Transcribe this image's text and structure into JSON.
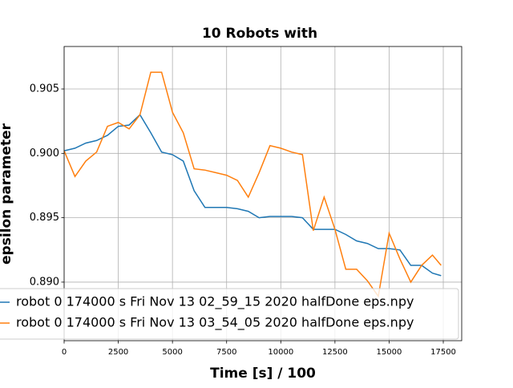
{
  "chart_data": {
    "type": "line",
    "title": "10 Robots with",
    "x_label": "Time [s] / 100",
    "y_label": "epsilon parameter",
    "x": [
      0,
      500,
      1000,
      1500,
      2000,
      2500,
      3000,
      3500,
      4000,
      4500,
      5000,
      5500,
      6000,
      6500,
      7000,
      7500,
      8000,
      8500,
      9000,
      9500,
      10000,
      10500,
      11000,
      11500,
      12000,
      12500,
      13000,
      13500,
      14000,
      14500,
      15000,
      15500,
      16000,
      16500,
      17000,
      17400
    ],
    "series": [
      {
        "name": "robot 0 174000 s Fri Nov 13 02_59_15 2020 halfDone eps.npy",
        "color": "#1f77b4",
        "values": [
          0.9002,
          0.9004,
          0.9008,
          0.901,
          0.9014,
          0.9021,
          0.9022,
          0.903,
          0.9016,
          0.9001,
          0.8999,
          0.8994,
          0.8971,
          0.8958,
          0.8958,
          0.8958,
          0.8957,
          0.8955,
          0.895,
          0.8951,
          0.8951,
          0.8951,
          0.895,
          0.8941,
          0.8941,
          0.8941,
          0.8937,
          0.8932,
          0.893,
          0.8926,
          0.8926,
          0.8925,
          0.8913,
          0.8913,
          0.8907,
          0.8905
        ]
      },
      {
        "name": "robot 0 174000 s Fri Nov 13 03_54_05 2020 halfDone eps.npy",
        "color": "#ff7f0e",
        "values": [
          0.9002,
          0.8982,
          0.8994,
          0.9001,
          0.9021,
          0.9024,
          0.9019,
          0.903,
          0.9063,
          0.9063,
          0.9032,
          0.9016,
          0.8988,
          0.8987,
          0.8985,
          0.8983,
          0.8979,
          0.8966,
          0.8985,
          0.9006,
          0.9004,
          0.9001,
          0.8999,
          0.894,
          0.8966,
          0.8941,
          0.891,
          0.891,
          0.8901,
          0.8889,
          0.8938,
          0.8918,
          0.89,
          0.8913,
          0.8921,
          0.8913
        ]
      }
    ],
    "xlim": [
      0,
      18350
    ],
    "ylim": [
      0.88545,
      0.9083
    ],
    "xticks": [
      0,
      2500,
      5000,
      7500,
      10000,
      12500,
      15000,
      17500
    ],
    "yticks": [
      {
        "value": 0.89,
        "label": "0.890"
      },
      0.895,
      {
        "value": 0.9,
        "label": "0.900"
      },
      0.905
    ],
    "grid": true
  }
}
